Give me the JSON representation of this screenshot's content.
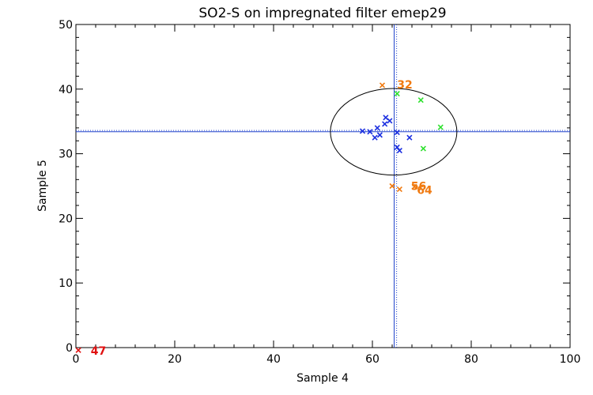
{
  "chart_data": {
    "type": "scatter",
    "title": "SO2-S on impregnated filter emep29",
    "xlabel": "Sample 4",
    "ylabel": "Sample 5",
    "xlim": [
      0,
      100
    ],
    "ylim": [
      0,
      50
    ],
    "x_ticks": [
      0,
      20,
      40,
      60,
      80,
      100
    ],
    "y_ticks": [
      0,
      10,
      20,
      30,
      40,
      50
    ],
    "grid": false,
    "reference": {
      "x_solid": 64.4,
      "x_dotted": 64.9,
      "y_solid": 33.4,
      "y_dotted": 33.6,
      "ellipse_center": [
        64.3,
        33.4
      ],
      "ellipse_radius": [
        12.8,
        6.7
      ],
      "color": "#2244cc"
    },
    "series": [
      {
        "color": "#1a2ee0",
        "points": [
          [
            58.0,
            33.5
          ],
          [
            59.5,
            33.4
          ],
          [
            60.5,
            32.5
          ],
          [
            61.5,
            32.9
          ],
          [
            61.0,
            34.0
          ],
          [
            62.5,
            34.6
          ],
          [
            62.7,
            35.6
          ],
          [
            63.5,
            35.1
          ],
          [
            65.0,
            33.3
          ],
          [
            65.0,
            31.0
          ],
          [
            65.5,
            30.5
          ],
          [
            67.5,
            32.5
          ]
        ]
      },
      {
        "color": "#2ee02e",
        "points": [
          [
            65.0,
            39.3
          ],
          [
            69.8,
            38.3
          ],
          [
            73.8,
            34.1
          ],
          [
            70.3,
            30.8
          ]
        ]
      },
      {
        "color": "#f07a10",
        "points": [
          [
            62.0,
            40.6
          ],
          [
            64.0,
            25.0
          ],
          [
            65.5,
            24.5
          ],
          [
            68.5,
            24.9
          ]
        ]
      },
      {
        "color": "#e01010",
        "points": [
          [
            0.5,
            -0.4
          ]
        ]
      }
    ],
    "annotations": [
      {
        "text": "32",
        "x": 65.0,
        "y": 40.7,
        "color": "#f07a10"
      },
      {
        "text": "56",
        "x": 67.8,
        "y": 25.0,
        "color": "#f07a10"
      },
      {
        "text": "64",
        "x": 69.0,
        "y": 24.4,
        "color": "#f07a10"
      },
      {
        "text": "47",
        "x": 3.0,
        "y": -0.5,
        "color": "#e01010"
      }
    ]
  }
}
